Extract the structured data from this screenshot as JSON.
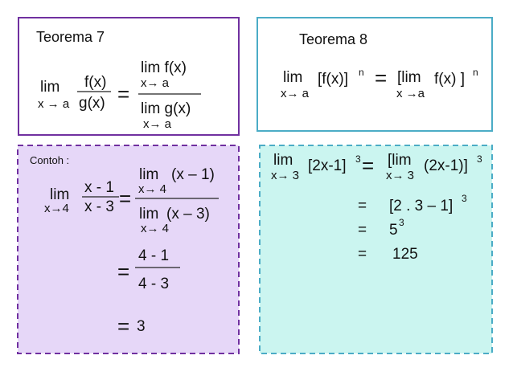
{
  "teorema_7": {
    "title": "Teorema 7",
    "lim": "lim",
    "lim_sub": "x → a",
    "numerator": "f(x)",
    "denominator": "g(x)",
    "equals": "=",
    "rhs_numerator": "lim f(x)",
    "rhs_numerator_sub": "x→ a",
    "rhs_denominator": "lim g(x)",
    "rhs_denominator_sub": "x→ a"
  },
  "teorema_8": {
    "title": "Teorema 8",
    "lim": "lim",
    "lim_sub": "x→ a",
    "base": "[f(x)]",
    "power": "n",
    "equals": "=",
    "rhs_lim": "[lim",
    "rhs_lim_sub": "x →a",
    "rhs_base": "f(x) ]",
    "rhs_power": "n"
  },
  "contoh_1": {
    "label": "Contoh :",
    "lim": "lim",
    "lim_sub": "x→4",
    "numerator": "x - 1",
    "denominator": "x - 3",
    "equals_1": "=",
    "num_lim": "lim",
    "num_expr": "(x – 1)",
    "num_sub": "x→ 4",
    "den_lim": "lim",
    "den_expr": "(x – 3)",
    "den_sub": "x→ 4",
    "equals_2": "=",
    "step_numerator": "4 - 1",
    "step_denominator": "4 - 3",
    "equals_3": "=",
    "result": "3"
  },
  "contoh_2": {
    "lim": "lim",
    "lim_sub": "x→ 3",
    "base": "[2x-1]",
    "power": "3",
    "equals_1": "=",
    "rhs_lim": "[lim",
    "rhs_lim_sub": "x→ 3",
    "rhs_expr": "(2x-1)]",
    "rhs_power": "3",
    "equals_2": "=",
    "step_1": "[2 . 3 – 1]",
    "step_1_power": "3",
    "equals_3": "=",
    "step_2": "5",
    "step_2_power": "3",
    "equals_4": "=",
    "result": "125"
  }
}
